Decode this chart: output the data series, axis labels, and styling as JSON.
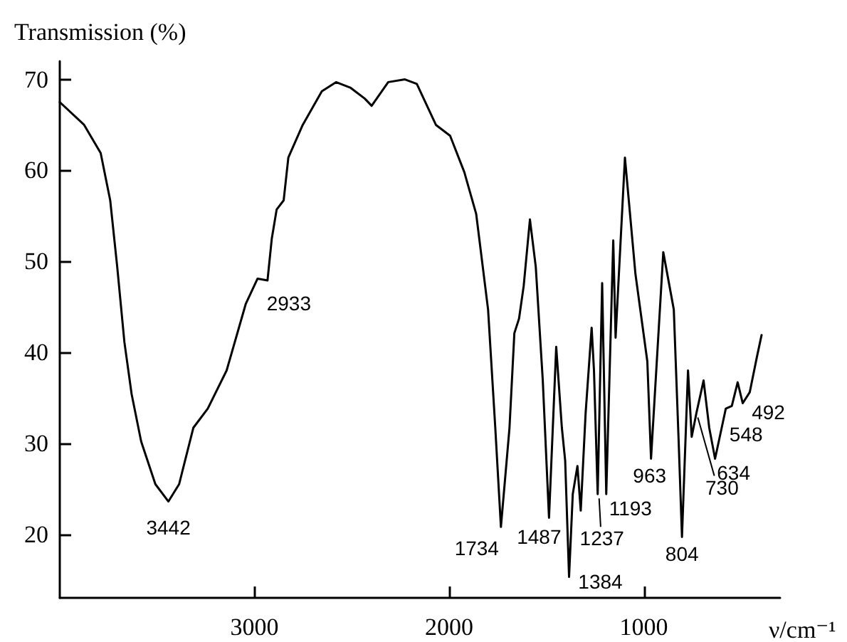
{
  "chart_data": {
    "type": "line",
    "xlabel": "ν/cm⁻¹",
    "ylabel": "Transmission (%)",
    "x": [
      4000,
      3875,
      3790,
      3741,
      3705,
      3668,
      3631,
      3582,
      3509,
      3442,
      3387,
      3314,
      3240,
      3143,
      3045,
      2984,
      2933,
      2911,
      2886,
      2850,
      2826,
      2752,
      2654,
      2581,
      2508,
      2434,
      2398,
      2313,
      2227,
      2166,
      2068,
      1995,
      1922,
      1861,
      1800,
      1763,
      1734,
      1690,
      1665,
      1641,
      1617,
      1585,
      1555,
      1519,
      1487,
      1450,
      1421,
      1404,
      1384,
      1365,
      1341,
      1324,
      1299,
      1268,
      1256,
      1237,
      1214,
      1193,
      1157,
      1145,
      1097,
      1043,
      982,
      963,
      900,
      846,
      821,
      804,
      773,
      754,
      730,
      693,
      664,
      634,
      579,
      548,
      518,
      492,
      456,
      419,
      395
    ],
    "series": [
      {
        "color": "#000000",
        "values": [
          67.5,
          65,
          61.9,
          56.7,
          49.4,
          41.1,
          35.4,
          30.2,
          25.5,
          23.6,
          25.5,
          31.7,
          33.8,
          38,
          45.3,
          48.1,
          47.9,
          52.5,
          55.7,
          56.7,
          61.4,
          65,
          68.7,
          69.7,
          69.1,
          67.9,
          67.1,
          69.7,
          70,
          69.5,
          65,
          63.8,
          59.8,
          55.2,
          44.7,
          31.7,
          20.8,
          31.7,
          42.1,
          43.7,
          47.3,
          54.6,
          49.4,
          36.9,
          21.8,
          40.6,
          31.7,
          28.1,
          15.3,
          24.4,
          27.5,
          22.6,
          33.3,
          42.7,
          38,
          24.4,
          47.6,
          24.4,
          52.3,
          41.6,
          61.4,
          48.6,
          39,
          28.3,
          51,
          44.7,
          30.2,
          19.7,
          38,
          30.7,
          33.3,
          36.9,
          31.7,
          28.3,
          33.8,
          34.1,
          36.7,
          34.4,
          35.6,
          39.5,
          41.9
        ]
      }
    ],
    "xlim": [
      4000,
      300
    ],
    "xticks": [
      3000,
      2000,
      1000
    ],
    "ylim": [
      13,
      72
    ],
    "yticks": [
      20,
      30,
      40,
      50,
      60,
      70
    ],
    "grid": false,
    "marker": "none",
    "line_style": "solid",
    "annotations": [
      {
        "text": "3442",
        "x": 3442,
        "y": 23.6
      },
      {
        "text": "2933",
        "x": 2933,
        "y": 47.9
      },
      {
        "text": "1734",
        "x": 1734,
        "y": 20.8
      },
      {
        "text": "1487",
        "x": 1487,
        "y": 21.8
      },
      {
        "text": "1384",
        "x": 1384,
        "y": 15.3
      },
      {
        "text": "1237",
        "x": 1237,
        "y": 24.4
      },
      {
        "text": "1193",
        "x": 1193,
        "y": 24.4
      },
      {
        "text": "963",
        "x": 963,
        "y": 28.3
      },
      {
        "text": "804",
        "x": 804,
        "y": 19.7
      },
      {
        "text": "730",
        "x": 730,
        "y": 33.3
      },
      {
        "text": "634",
        "x": 634,
        "y": 28.3
      },
      {
        "text": "548",
        "x": 548,
        "y": 34.1
      },
      {
        "text": "492",
        "x": 492,
        "y": 34.4
      }
    ]
  }
}
